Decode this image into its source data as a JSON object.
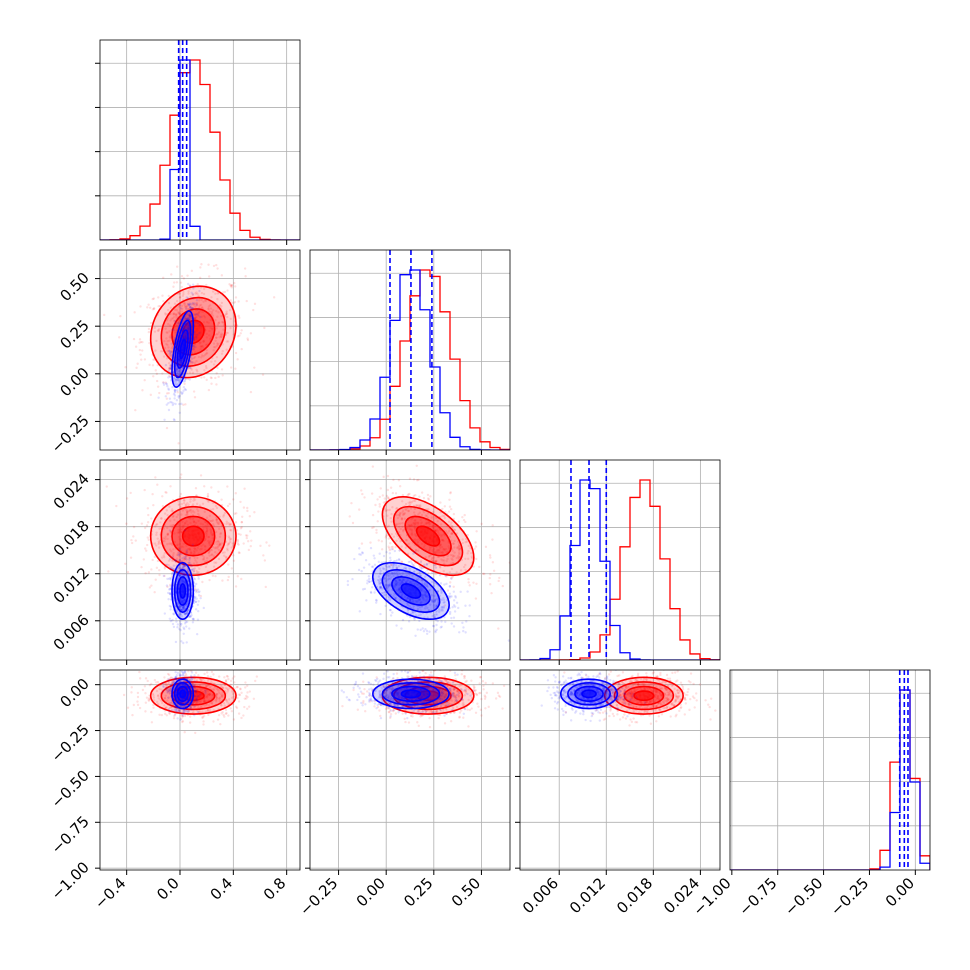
{
  "chart_data": {
    "type": "corner",
    "title": "",
    "grid": true,
    "parameters": [
      {
        "range": [
          -0.6,
          0.9
        ],
        "ticks": [
          -0.4,
          0.0,
          0.4,
          0.8
        ],
        "tick_labels": [
          "−0.4",
          "0.0",
          "0.4",
          "0.8"
        ]
      },
      {
        "range": [
          -0.4,
          0.65
        ],
        "ticks": [
          -0.25,
          0.0,
          0.25,
          0.5
        ],
        "tick_labels": [
          "−0.25",
          "0.00",
          "0.25",
          "0.50"
        ]
      },
      {
        "range": [
          0.001,
          0.0265
        ],
        "ticks": [
          0.006,
          0.012,
          0.018,
          0.024
        ],
        "tick_labels": [
          "0.006",
          "0.012",
          "0.018",
          "0.024"
        ]
      },
      {
        "range": [
          -1.01,
          0.08
        ],
        "ticks": [
          -1.0,
          -0.75,
          -0.5,
          -0.25,
          0.0
        ],
        "tick_labels": [
          "−1.00",
          "−0.75",
          "−0.50",
          "−0.25",
          "0.00"
        ]
      }
    ],
    "series": [
      {
        "color": "#ff0000",
        "means": [
          0.1,
          0.22,
          0.0168,
          -0.06
        ],
        "sds": [
          0.16,
          0.12,
          0.0025,
          0.05
        ],
        "corr": {
          "0-1": 0.15,
          "0-2": 0.0,
          "1-2": -0.55,
          "0-3": 0.0,
          "1-3": 0.0,
          "2-3": 0.0
        },
        "quantiles": null
      },
      {
        "color": "#0000ff",
        "means": [
          0.02,
          0.13,
          0.0098,
          -0.05
        ],
        "sds": [
          0.04,
          0.1,
          0.0018,
          0.04
        ],
        "corr": {
          "0-1": 0.6,
          "0-2": 0.0,
          "1-2": -0.5,
          "0-3": 0.0,
          "1-3": 0.0,
          "2-3": 0.0
        },
        "quantiles": [
          [
            -0.01,
            0.02,
            0.05
          ],
          [
            0.02,
            0.13,
            0.24
          ],
          [
            0.0075,
            0.0098,
            0.012
          ],
          [
            -0.085,
            -0.06,
            -0.04
          ]
        ]
      }
    ]
  }
}
